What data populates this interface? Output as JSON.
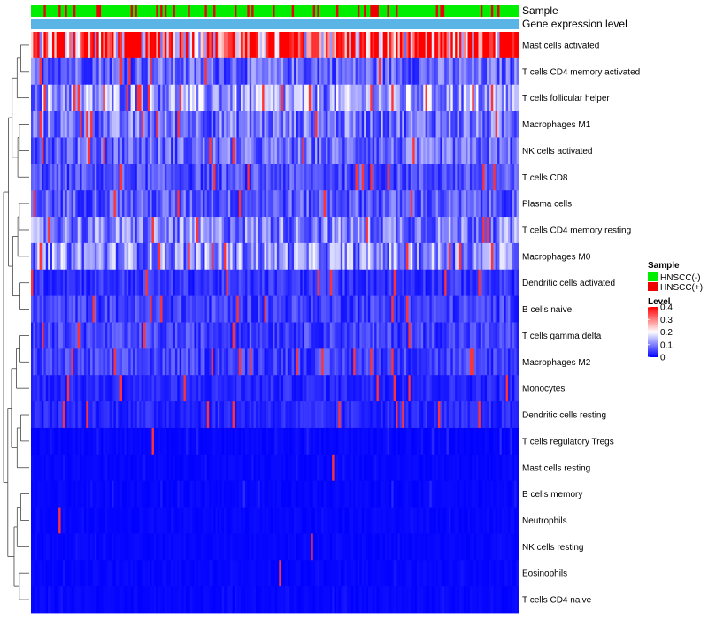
{
  "chart_data": {
    "type": "heatmap",
    "rows": [
      "Mast cells activated",
      "T cells CD4 memory activated",
      "T cells follicular helper",
      "Macrophages M1",
      "NK cells activated",
      "T cells CD8",
      "Plasma cells",
      "T cells CD4 memory resting",
      "Macrophages M0",
      "Dendritic cells activated",
      "B cells naive",
      "T cells gamma delta",
      "Macrophages M2",
      "Monocytes",
      "Dendritic cells resting",
      "T cells regulatory  Tregs",
      "Mast cells resting",
      "B cells memory",
      "Neutrophils",
      "NK cells resting",
      "Eosinophils",
      "T cells CD4 naive"
    ],
    "row_mean_level": [
      0.33,
      0.08,
      0.12,
      0.09,
      0.08,
      0.06,
      0.07,
      0.1,
      0.11,
      0.04,
      0.05,
      0.05,
      0.05,
      0.03,
      0.03,
      0.02,
      0.01,
      0.02,
      0.01,
      0.01,
      0.01,
      0.01
    ],
    "n_samples": 230,
    "annotations": [
      {
        "label": "Sample",
        "kind": "sample"
      },
      {
        "label": "Gene expression level",
        "kind": "level"
      }
    ],
    "sample_legend": {
      "title": "Sample",
      "items": [
        {
          "label": "HNSCC(-)",
          "color": "#00ee00"
        },
        {
          "label": "HNSCC(+)",
          "color": "#ee0000"
        }
      ]
    },
    "level_legend": {
      "title": "Level",
      "ticks": [
        "0.4",
        "0.3",
        "0.2",
        "0.1",
        "0"
      ],
      "tick_values": [
        0.4,
        0.3,
        0.2,
        0.1,
        0
      ],
      "range": [
        0,
        0.4
      ],
      "colors": {
        "low": "#0000ff",
        "mid": "#ffffff",
        "high": "#ff0000"
      }
    },
    "level_bar_color": "#5ab4e6",
    "dendrogram": "rows clustered (hierarchical)"
  }
}
